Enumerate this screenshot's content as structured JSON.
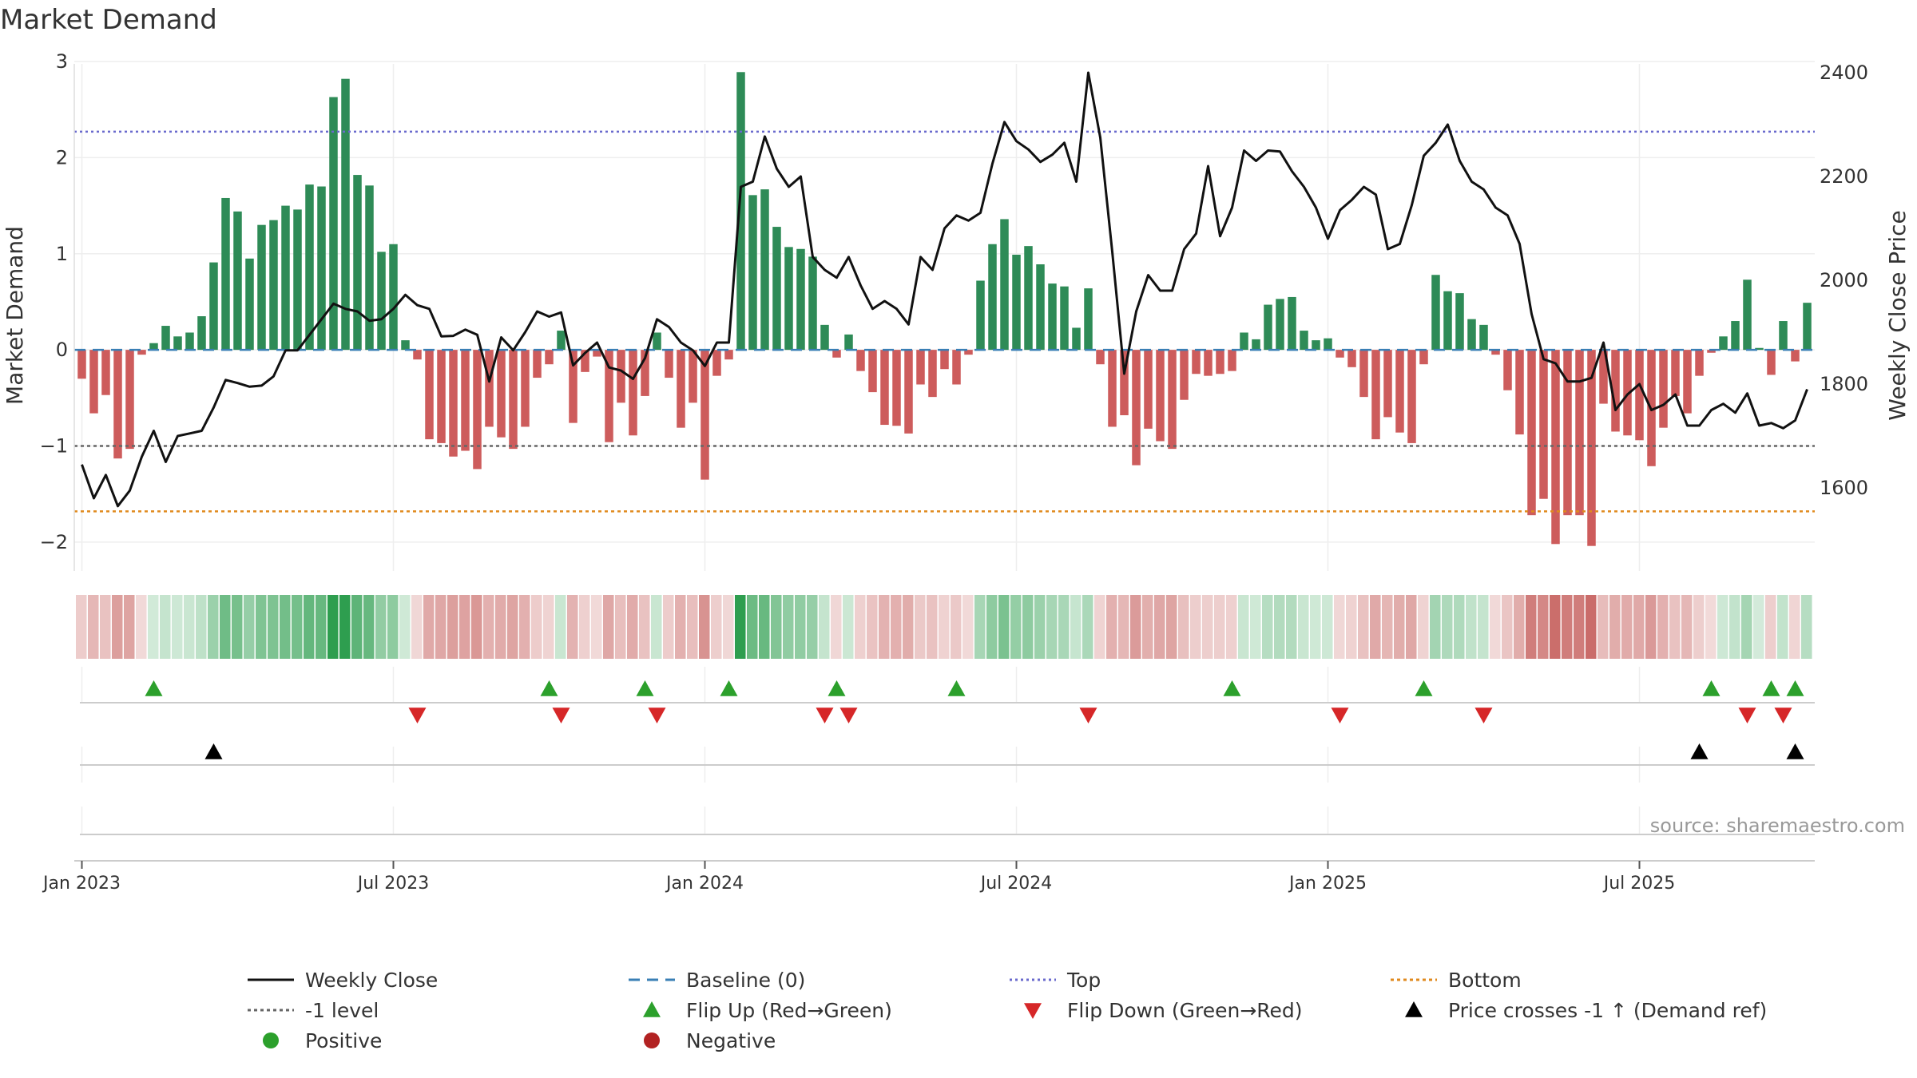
{
  "chart_data": {
    "type": "bar",
    "title": "Market Demand",
    "ylabel": "Market Demand",
    "y2label": "Weekly Close Price",
    "ylim": [
      -2.3,
      3.1
    ],
    "y2lim": [
      1440,
      2440
    ],
    "yticks": [
      -2,
      -1,
      0,
      1,
      2,
      3
    ],
    "yticklabels": [
      "−2",
      "−1",
      "0",
      "1",
      "2",
      "3"
    ],
    "y2ticks": [
      1600,
      1800,
      2000,
      2200,
      2400
    ],
    "y2ticklabels": [
      "1600",
      "1800",
      "2000",
      "2200",
      "2400"
    ],
    "xticks": [
      0,
      26,
      52,
      78,
      104,
      130
    ],
    "xticklabels": [
      "Jan 2023",
      "Jul 2023",
      "Jan 2024",
      "Jul 2024",
      "Jan 2025",
      "Jul 2025"
    ],
    "start_week": "2022-12-19",
    "reference_lines": {
      "top": 2.27,
      "minus_one": -1.0,
      "bottom": -1.68,
      "baseline": 0
    },
    "positive_color": "#2e8b57",
    "negative_color": "#cd5c5c",
    "demand": [
      -0.3,
      -0.66,
      -0.47,
      -1.13,
      -1.03,
      -0.05,
      0.07,
      0.25,
      0.14,
      0.18,
      0.35,
      0.91,
      1.58,
      1.44,
      0.95,
      1.3,
      1.35,
      1.5,
      1.46,
      1.72,
      1.7,
      2.63,
      2.82,
      1.82,
      1.71,
      1.02,
      1.1,
      0.1,
      -0.1,
      -0.93,
      -0.97,
      -1.11,
      -1.05,
      -1.24,
      -0.8,
      -0.91,
      -1.03,
      -0.8,
      -0.29,
      -0.15,
      0.2,
      -0.76,
      -0.23,
      -0.07,
      -0.96,
      -0.55,
      -0.89,
      -0.48,
      0.18,
      -0.29,
      -0.81,
      -0.55,
      -1.35,
      -0.27,
      -0.1,
      2.89,
      1.61,
      1.67,
      1.28,
      1.07,
      1.05,
      0.97,
      0.26,
      -0.08,
      0.16,
      -0.22,
      -0.44,
      -0.78,
      -0.79,
      -0.87,
      -0.36,
      -0.49,
      -0.2,
      -0.36,
      -0.05,
      0.72,
      1.1,
      1.36,
      0.99,
      1.08,
      0.89,
      0.69,
      0.66,
      0.23,
      0.64,
      -0.15,
      -0.8,
      -0.68,
      -1.2,
      -0.82,
      -0.95,
      -1.03,
      -0.52,
      -0.25,
      -0.27,
      -0.25,
      -0.22,
      0.18,
      0.11,
      0.47,
      0.53,
      0.55,
      0.2,
      0.1,
      0.12,
      -0.08,
      -0.18,
      -0.49,
      -0.93,
      -0.7,
      -0.86,
      -0.97,
      -0.15,
      0.78,
      0.61,
      0.59,
      0.32,
      0.26,
      -0.05,
      -0.42,
      -0.88,
      -1.72,
      -1.55,
      -2.02,
      -1.72,
      -1.72,
      -2.04,
      -0.56,
      -0.85,
      -0.89,
      -0.94,
      -1.21,
      -0.81,
      -0.48,
      -0.66,
      -0.27,
      -0.03,
      0.14,
      0.3,
      0.73,
      0.02,
      -0.26,
      0.3,
      -0.12,
      0.49
    ],
    "close": [
      1645,
      1580,
      1625,
      1565,
      1595,
      1660,
      1710,
      1650,
      1700,
      1705,
      1710,
      1755,
      1808,
      1802,
      1795,
      1797,
      1815,
      1865,
      1865,
      1895,
      1925,
      1955,
      1945,
      1940,
      1922,
      1925,
      1945,
      1972,
      1952,
      1945,
      1892,
      1893,
      1905,
      1895,
      1805,
      1890,
      1865,
      1900,
      1940,
      1930,
      1938,
      1836,
      1860,
      1880,
      1832,
      1826,
      1810,
      1850,
      1925,
      1910,
      1880,
      1865,
      1835,
      1880,
      1880,
      2180,
      2190,
      2277,
      2215,
      2180,
      2200,
      2045,
      2020,
      2005,
      2045,
      1990,
      1945,
      1960,
      1945,
      1915,
      2045,
      2020,
      2100,
      2125,
      2115,
      2130,
      2225,
      2305,
      2268,
      2252,
      2228,
      2242,
      2265,
      2190,
      2400,
      2275,
      2055,
      1820,
      1940,
      2010,
      1980,
      1980,
      2060,
      2090,
      2220,
      2085,
      2140,
      2250,
      2230,
      2250,
      2248,
      2210,
      2180,
      2140,
      2080,
      2135,
      2155,
      2180,
      2165,
      2060,
      2070,
      2145,
      2240,
      2265,
      2300,
      2230,
      2190,
      2175,
      2140,
      2125,
      2070,
      1935,
      1848,
      1840,
      1805,
      1805,
      1812,
      1880,
      1750,
      1780,
      1800,
      1750,
      1760,
      1780,
      1720,
      1720,
      1750,
      1762,
      1745,
      1782,
      1720,
      1725,
      1715,
      1730,
      1790
    ],
    "flip_up_weeks": [
      6,
      39,
      47,
      54,
      63,
      73,
      96,
      112,
      136,
      141,
      143
    ],
    "flip_down_weeks": [
      28,
      40,
      48,
      62,
      64,
      84,
      105,
      117,
      139,
      142
    ],
    "cross_up_weeks": [
      11,
      135,
      143
    ],
    "source": "source: sharemaestro.com",
    "legend": [
      [
        "Weekly Close",
        "Baseline (0)",
        "Top",
        "Bottom"
      ],
      [
        "-1 level",
        "Flip Up (Red→Green)",
        "Flip Down (Green→Red)",
        "Price crosses -1 ↑ (Demand ref)"
      ],
      [
        "Positive",
        "Negative"
      ]
    ]
  }
}
